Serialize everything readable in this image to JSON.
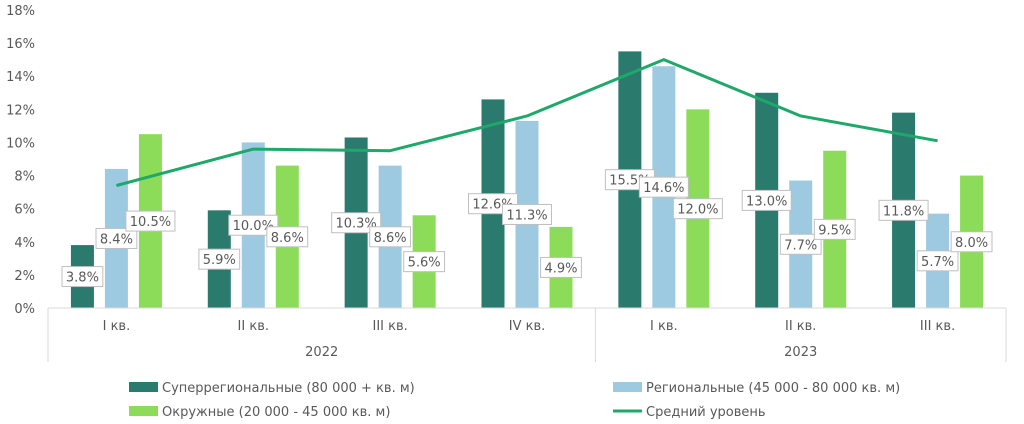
{
  "chart_data": {
    "type": "bar",
    "y_axis": {
      "ticks": [
        "0%",
        "2%",
        "4%",
        "6%",
        "8%",
        "10%",
        "12%",
        "14%",
        "16%",
        "18%"
      ],
      "ylim": [
        0,
        18
      ],
      "unit": "%"
    },
    "groups": [
      {
        "label": "2022",
        "categories": [
          "I кв.",
          "II кв.",
          "III кв.",
          "IV кв."
        ]
      },
      {
        "label": "2023",
        "categories": [
          "I кв.",
          "II кв.",
          "III кв."
        ]
      }
    ],
    "categories": [
      "I кв.",
      "II кв.",
      "III кв.",
      "IV кв.",
      "I кв.",
      "II кв.",
      "III кв."
    ],
    "series": [
      {
        "name": "Суперрегиональные (80 000 + кв. м)",
        "kind": "bar",
        "color": "#2a7a6e",
        "values": [
          3.8,
          5.9,
          10.3,
          12.6,
          15.5,
          13.0,
          11.8
        ],
        "labels": [
          "3.8%",
          "5.9%",
          "10.3%",
          "12.6%",
          "15.5%",
          "13.0%",
          "11.8%"
        ]
      },
      {
        "name": "Региональные (45 000 - 80 000 кв. м)",
        "kind": "bar",
        "color": "#9ecae1",
        "values": [
          8.4,
          10.0,
          8.6,
          11.3,
          14.6,
          7.7,
          5.7
        ],
        "labels": [
          "8.4%",
          "10.0%",
          "8.6%",
          "11.3%",
          "14.6%",
          "7.7%",
          "5.7%"
        ]
      },
      {
        "name": "Окружные (20 000 - 45 000 кв. м)",
        "kind": "bar",
        "color": "#8cdc5a",
        "values": [
          10.5,
          8.6,
          5.6,
          4.9,
          12.0,
          9.5,
          8.0
        ],
        "labels": [
          "10.5%",
          "8.6%",
          "5.6%",
          "4.9%",
          "12.0%",
          "9.5%",
          "8.0%"
        ]
      },
      {
        "name": "Средний уровень",
        "kind": "line",
        "color": "#1ea86a",
        "values": [
          7.4,
          9.6,
          9.5,
          11.6,
          15.0,
          11.6,
          10.1
        ]
      }
    ],
    "grid": false,
    "legend_placement": "bottom"
  }
}
